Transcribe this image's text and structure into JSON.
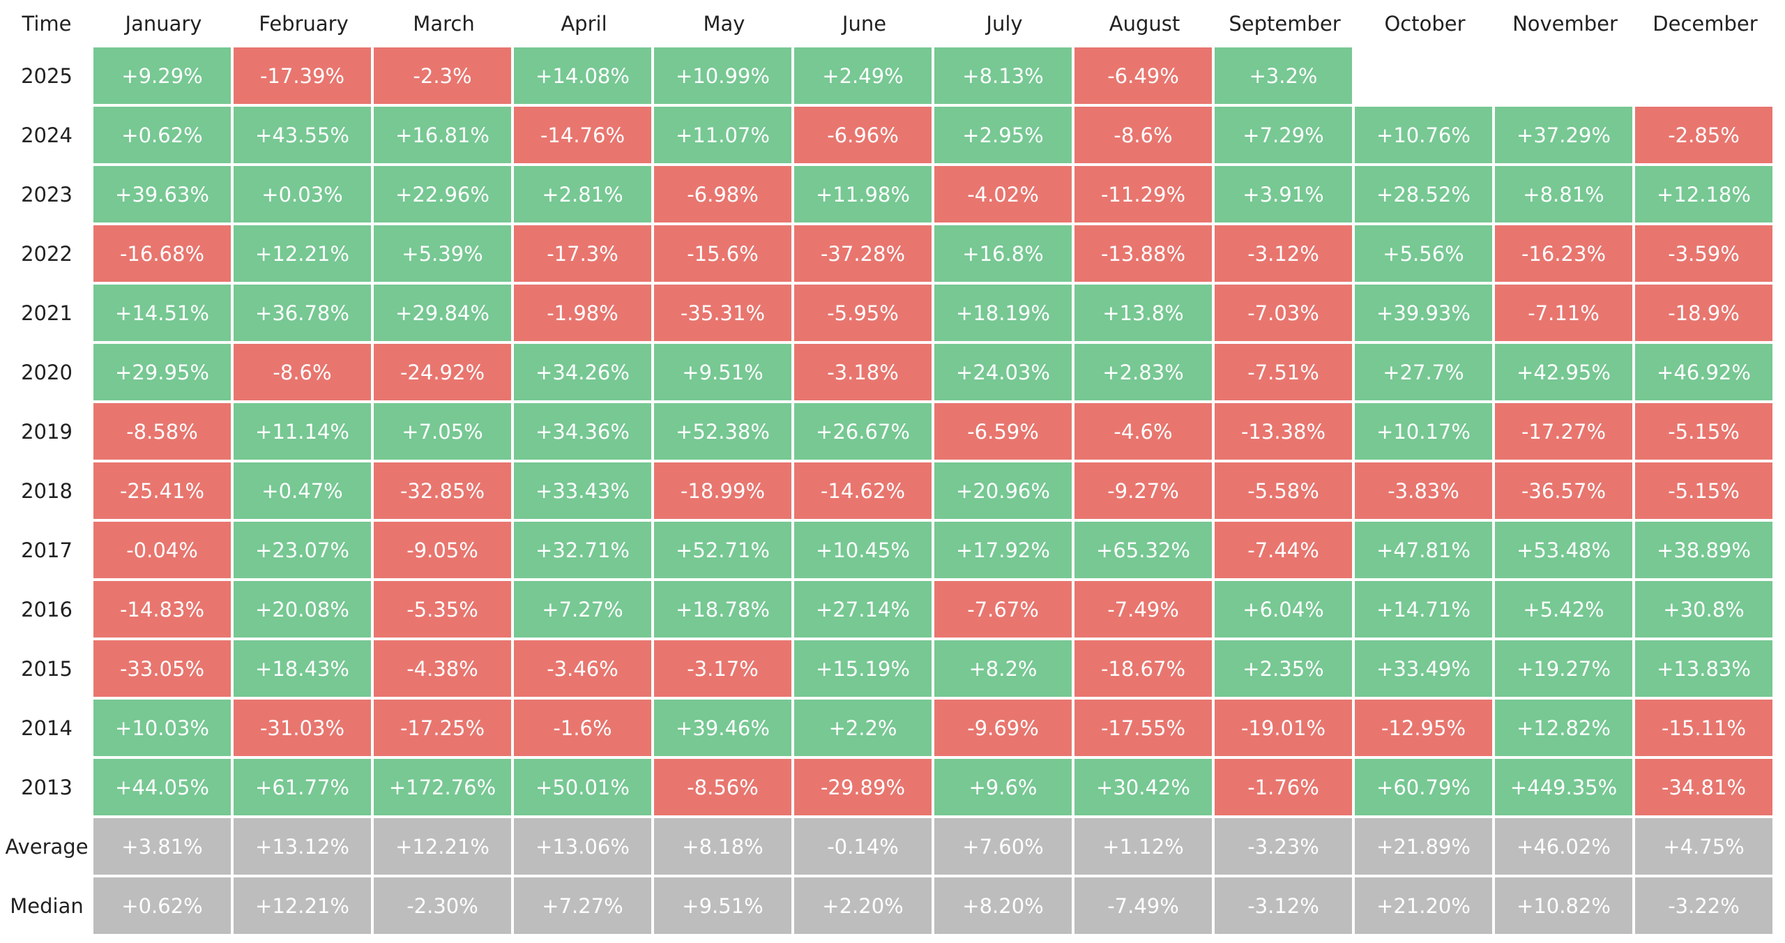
{
  "table": {
    "header": [
      "Time",
      "January",
      "February",
      "March",
      "April",
      "May",
      "June",
      "July",
      "August",
      "September",
      "October",
      "November",
      "December"
    ],
    "rows": [
      {
        "label": "2025",
        "cells": [
          "+9.29%",
          "-17.39%",
          "-2.3%",
          "+14.08%",
          "+10.99%",
          "+2.49%",
          "+8.13%",
          "-6.49%",
          "+3.2%"
        ]
      },
      {
        "label": "2024",
        "cells": [
          "+0.62%",
          "+43.55%",
          "+16.81%",
          "-14.76%",
          "+11.07%",
          "-6.96%",
          "+2.95%",
          "-8.6%",
          "+7.29%",
          "+10.76%",
          "+37.29%",
          "-2.85%"
        ]
      },
      {
        "label": "2023",
        "cells": [
          "+39.63%",
          "+0.03%",
          "+22.96%",
          "+2.81%",
          "-6.98%",
          "+11.98%",
          "-4.02%",
          "-11.29%",
          "+3.91%",
          "+28.52%",
          "+8.81%",
          "+12.18%"
        ]
      },
      {
        "label": "2022",
        "cells": [
          "-16.68%",
          "+12.21%",
          "+5.39%",
          "-17.3%",
          "-15.6%",
          "-37.28%",
          "+16.8%",
          "-13.88%",
          "-3.12%",
          "+5.56%",
          "-16.23%",
          "-3.59%"
        ]
      },
      {
        "label": "2021",
        "cells": [
          "+14.51%",
          "+36.78%",
          "+29.84%",
          "-1.98%",
          "-35.31%",
          "-5.95%",
          "+18.19%",
          "+13.8%",
          "-7.03%",
          "+39.93%",
          "-7.11%",
          "-18.9%"
        ]
      },
      {
        "label": "2020",
        "cells": [
          "+29.95%",
          "-8.6%",
          "-24.92%",
          "+34.26%",
          "+9.51%",
          "-3.18%",
          "+24.03%",
          "+2.83%",
          "-7.51%",
          "+27.7%",
          "+42.95%",
          "+46.92%"
        ]
      },
      {
        "label": "2019",
        "cells": [
          "-8.58%",
          "+11.14%",
          "+7.05%",
          "+34.36%",
          "+52.38%",
          "+26.67%",
          "-6.59%",
          "-4.6%",
          "-13.38%",
          "+10.17%",
          "-17.27%",
          "-5.15%"
        ]
      },
      {
        "label": "2018",
        "cells": [
          "-25.41%",
          "+0.47%",
          "-32.85%",
          "+33.43%",
          "-18.99%",
          "-14.62%",
          "+20.96%",
          "-9.27%",
          "-5.58%",
          "-3.83%",
          "-36.57%",
          "-5.15%"
        ]
      },
      {
        "label": "2017",
        "cells": [
          "-0.04%",
          "+23.07%",
          "-9.05%",
          "+32.71%",
          "+52.71%",
          "+10.45%",
          "+17.92%",
          "+65.32%",
          "-7.44%",
          "+47.81%",
          "+53.48%",
          "+38.89%"
        ]
      },
      {
        "label": "2016",
        "cells": [
          "-14.83%",
          "+20.08%",
          "-5.35%",
          "+7.27%",
          "+18.78%",
          "+27.14%",
          "-7.67%",
          "-7.49%",
          "+6.04%",
          "+14.71%",
          "+5.42%",
          "+30.8%"
        ]
      },
      {
        "label": "2015",
        "cells": [
          "-33.05%",
          "+18.43%",
          "-4.38%",
          "-3.46%",
          "-3.17%",
          "+15.19%",
          "+8.2%",
          "-18.67%",
          "+2.35%",
          "+33.49%",
          "+19.27%",
          "+13.83%"
        ]
      },
      {
        "label": "2014",
        "cells": [
          "+10.03%",
          "-31.03%",
          "-17.25%",
          "-1.6%",
          "+39.46%",
          "+2.2%",
          "-9.69%",
          "-17.55%",
          "-19.01%",
          "-12.95%",
          "+12.82%",
          "-15.11%"
        ]
      },
      {
        "label": "2013",
        "cells": [
          "+44.05%",
          "+61.77%",
          "+172.76%",
          "+50.01%",
          "-8.56%",
          "-29.89%",
          "+9.6%",
          "+30.42%",
          "-1.76%",
          "+60.79%",
          "+449.35%",
          "-34.81%"
        ]
      }
    ],
    "summary_rows": [
      {
        "label": "Average",
        "cells": [
          "+3.81%",
          "+13.12%",
          "+12.21%",
          "+13.06%",
          "+8.18%",
          "-0.14%",
          "+7.60%",
          "+1.12%",
          "-3.23%",
          "+21.89%",
          "+46.02%",
          "+4.75%"
        ]
      },
      {
        "label": "Median",
        "cells": [
          "+0.62%",
          "+12.21%",
          "-2.30%",
          "+7.27%",
          "+9.51%",
          "+2.20%",
          "+8.20%",
          "-7.49%",
          "-3.12%",
          "+21.20%",
          "+10.82%",
          "-3.22%"
        ]
      }
    ],
    "colors": {
      "positive": "#77c893",
      "negative": "#e8766f",
      "summary": "#bdbdbd"
    }
  }
}
